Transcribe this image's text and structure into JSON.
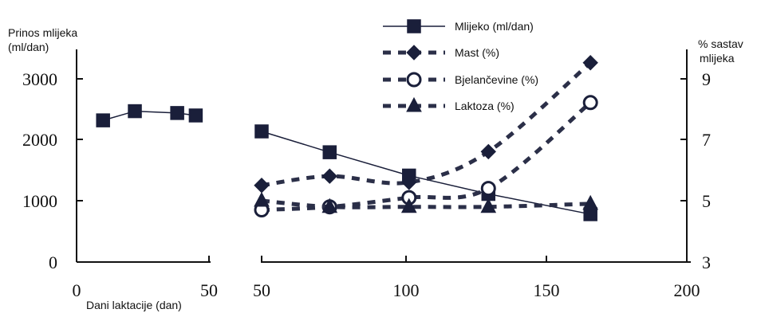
{
  "chart_data": {
    "type": "line",
    "xlabel": "Dani laktacije (dan)",
    "ylabel_left": [
      "Prinos mlijeka",
      "(ml/dan)"
    ],
    "ylabel_right": [
      "% sastav",
      "mlijeka"
    ],
    "x_ticks_left_panel": [
      "0",
      "50"
    ],
    "x_ticks_right_panel": [
      "50",
      "100",
      "150",
      "200"
    ],
    "y_ticks_left": [
      "0",
      "1000",
      "2000",
      "3000"
    ],
    "y_ticks_right": [
      "3",
      "5",
      "7",
      "9"
    ],
    "xlim_left_panel": [
      0,
      50
    ],
    "xlim_right_panel": [
      50,
      200
    ],
    "ylim_left": [
      0,
      3250
    ],
    "ylim_right": [
      3,
      9.5
    ],
    "legend_position": "top-center",
    "series": [
      {
        "name": "Mlijeko (ml/dan)",
        "axis": "left",
        "line": "solid",
        "marker": "square",
        "x": [
          10,
          22,
          38,
          45,
          50,
          74,
          102,
          130,
          166
        ],
        "y": [
          2310,
          2460,
          2430,
          2390,
          2130,
          1790,
          1410,
          1110,
          780
        ]
      },
      {
        "name": "Mast (%)",
        "axis": "right",
        "line": "dashed",
        "marker": "diamond",
        "x": [
          50,
          74,
          102,
          130,
          166
        ],
        "y": [
          5.5,
          5.8,
          5.6,
          6.6,
          9.5
        ]
      },
      {
        "name": "Bjelančevine (%)",
        "axis": "right",
        "line": "dashed",
        "marker": "circle-open",
        "x": [
          50,
          74,
          102,
          130,
          166
        ],
        "y": [
          4.7,
          4.8,
          5.1,
          5.4,
          8.2
        ]
      },
      {
        "name": "Laktoza (%)",
        "axis": "right",
        "line": "dashed",
        "marker": "triangle",
        "x": [
          50,
          74,
          102,
          130,
          166
        ],
        "y": [
          5.0,
          4.8,
          4.8,
          4.8,
          4.9
        ]
      }
    ]
  }
}
